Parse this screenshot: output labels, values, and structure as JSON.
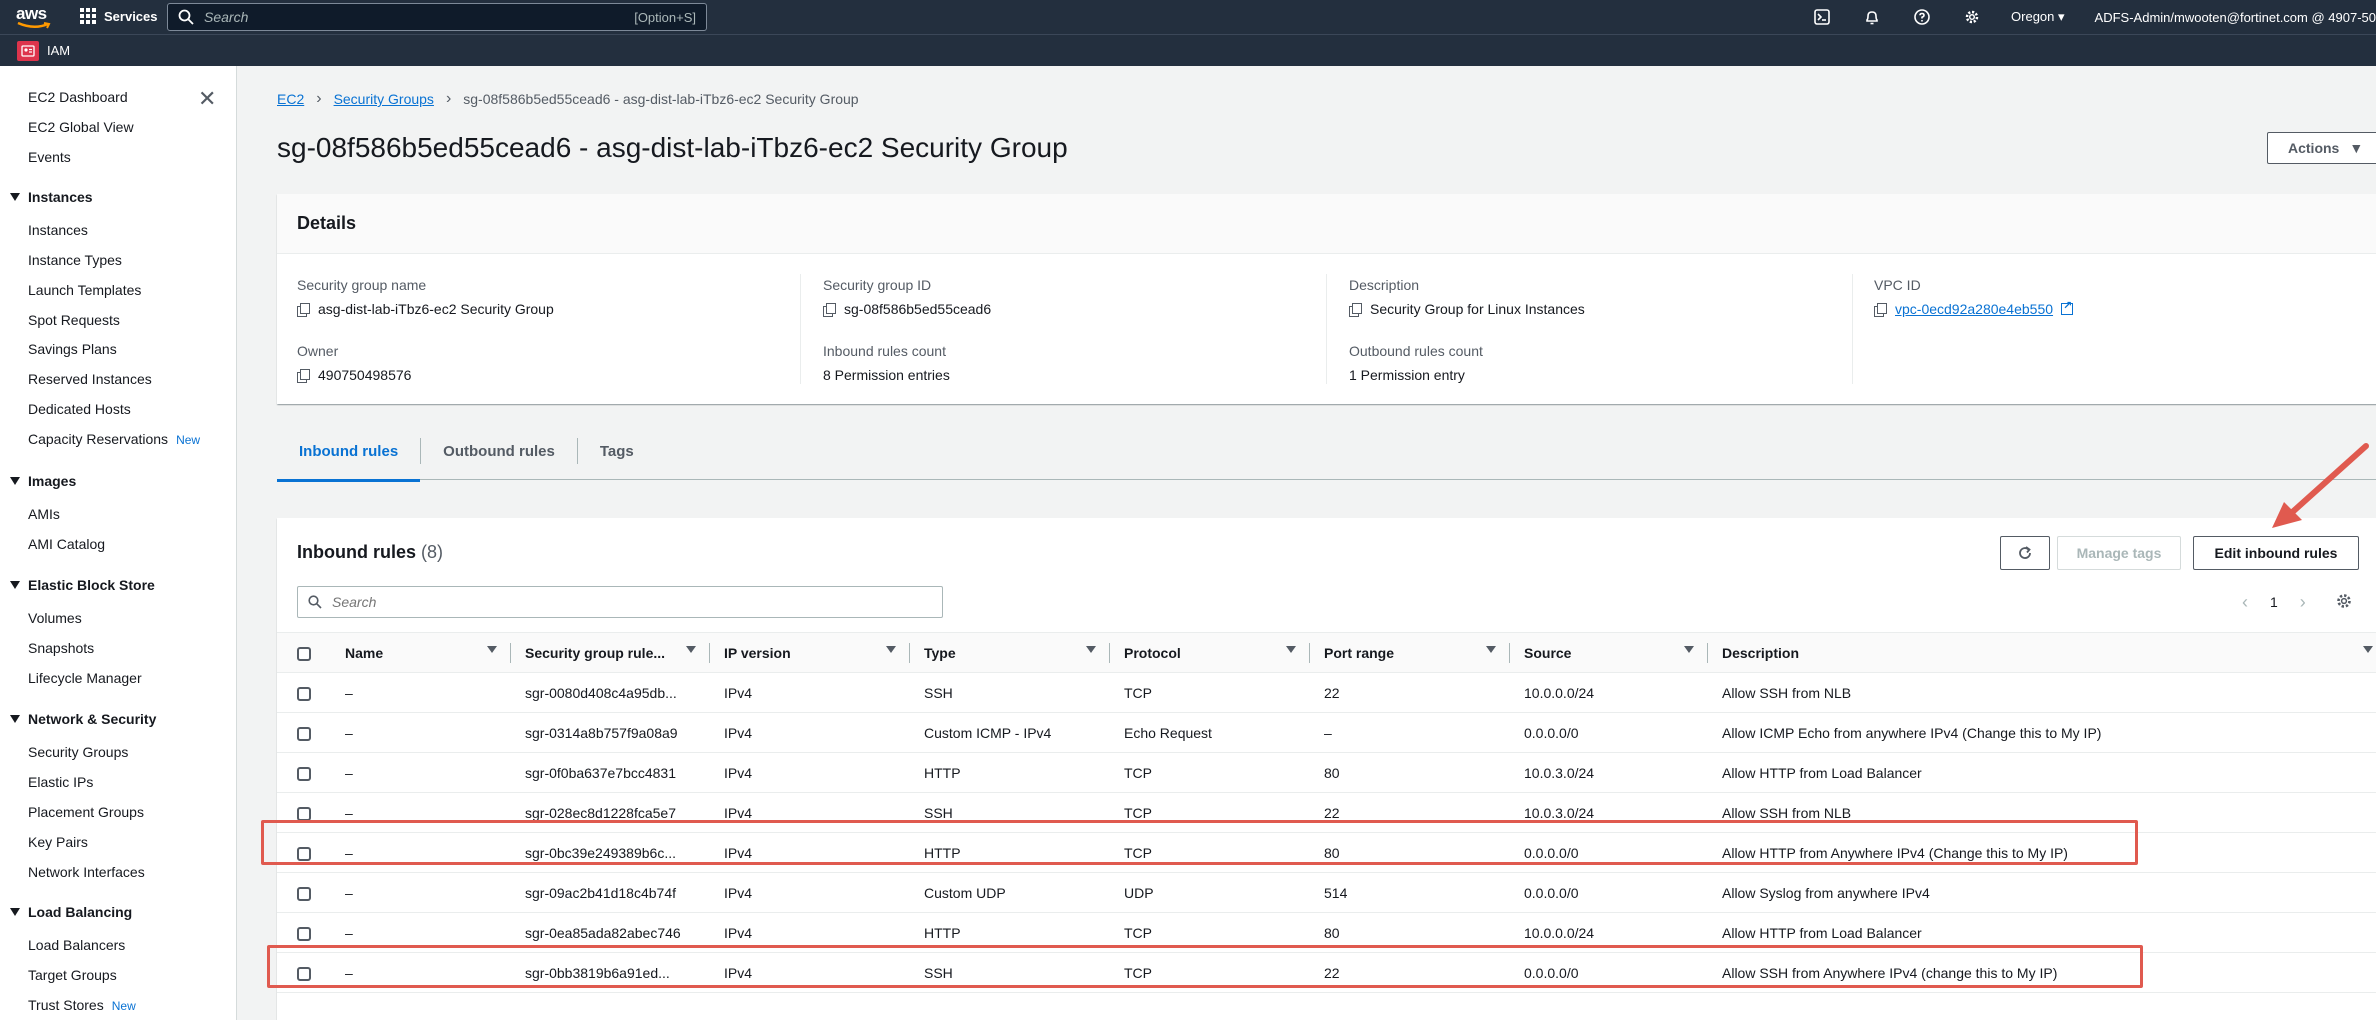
{
  "topnav": {
    "logo": "aws",
    "services_label": "Services",
    "search_placeholder": "Search",
    "search_shortcut": "[Option+S]",
    "icons": [
      "cloudshell-icon",
      "bell-icon",
      "help-icon",
      "gear-icon"
    ],
    "region": "Oregon",
    "account": "ADFS-Admin/mwooten@fortinet.com @ 4907-50"
  },
  "subnav": {
    "service_badge": "IAM",
    "service_label": "IAM"
  },
  "sidebar": {
    "top_items": [
      "EC2 Dashboard",
      "EC2 Global View",
      "Events"
    ],
    "sections": [
      {
        "title": "Instances",
        "items": [
          "Instances",
          "Instance Types",
          "Launch Templates",
          "Spot Requests",
          "Savings Plans",
          "Reserved Instances",
          "Dedicated Hosts",
          "Capacity Reservations"
        ]
      },
      {
        "title": "Images",
        "items": [
          "AMIs",
          "AMI Catalog"
        ]
      },
      {
        "title": "Elastic Block Store",
        "items": [
          "Volumes",
          "Snapshots",
          "Lifecycle Manager"
        ]
      },
      {
        "title": "Network & Security",
        "items": [
          "Security Groups",
          "Elastic IPs",
          "Placement Groups",
          "Key Pairs",
          "Network Interfaces"
        ]
      },
      {
        "title": "Load Balancing",
        "items": [
          "Load Balancers",
          "Target Groups",
          "Trust Stores"
        ]
      }
    ],
    "new_badge": "New"
  },
  "breadcrumb": {
    "ec2": "EC2",
    "security_groups": "Security Groups",
    "current": "sg-08f586b5ed55cead6 - asg-dist-lab-iTbz6-ec2 Security Group"
  },
  "page": {
    "title": "sg-08f586b5ed55cead6 - asg-dist-lab-iTbz6-ec2 Security Group",
    "actions_label": "Actions"
  },
  "details": {
    "heading": "Details",
    "sg_name_label": "Security group name",
    "sg_name": "asg-dist-lab-iTbz6-ec2 Security Group",
    "sg_id_label": "Security group ID",
    "sg_id": "sg-08f586b5ed55cead6",
    "description_label": "Description",
    "description": "Security Group for Linux Instances",
    "vpc_label": "VPC ID",
    "vpc_id": "vpc-0ecd92a280e4eb550",
    "owner_label": "Owner",
    "owner": "490750498576",
    "inbound_count_label": "Inbound rules count",
    "inbound_count": "8 Permission entries",
    "outbound_count_label": "Outbound rules count",
    "outbound_count": "1 Permission entry"
  },
  "tabs": [
    "Inbound rules",
    "Outbound rules",
    "Tags"
  ],
  "rules": {
    "title": "Inbound rules",
    "count": "(8)",
    "manage_tags": "Manage tags",
    "edit_inbound": "Edit inbound rules",
    "search_placeholder": "Search",
    "page_number": "1",
    "columns": [
      "Name",
      "Security group rule...",
      "IP version",
      "Type",
      "Protocol",
      "Port range",
      "Source",
      "Description"
    ],
    "rows": [
      [
        "–",
        "sgr-0080d408c4a95db...",
        "IPv4",
        "SSH",
        "TCP",
        "22",
        "10.0.0.0/24",
        "Allow SSH from NLB"
      ],
      [
        "–",
        "sgr-0314a8b757f9a08a9",
        "IPv4",
        "Custom ICMP - IPv4",
        "Echo Request",
        "–",
        "0.0.0.0/0",
        "Allow ICMP Echo from anywhere IPv4 (Change this to My IP)"
      ],
      [
        "–",
        "sgr-0f0ba637e7bcc4831",
        "IPv4",
        "HTTP",
        "TCP",
        "80",
        "10.0.3.0/24",
        "Allow HTTP from Load Balancer"
      ],
      [
        "–",
        "sgr-028ec8d1228fca5e7",
        "IPv4",
        "SSH",
        "TCP",
        "22",
        "10.0.3.0/24",
        "Allow SSH from NLB"
      ],
      [
        "–",
        "sgr-0bc39e249389b6c...",
        "IPv4",
        "HTTP",
        "TCP",
        "80",
        "0.0.0.0/0",
        "Allow HTTP from Anywhere IPv4 (Change this to My IP)"
      ],
      [
        "–",
        "sgr-09ac2b41d18c4b74f",
        "IPv4",
        "Custom UDP",
        "UDP",
        "514",
        "0.0.0.0/0",
        "Allow Syslog from anywhere IPv4"
      ],
      [
        "–",
        "sgr-0ea85ada82abec746",
        "IPv4",
        "HTTP",
        "TCP",
        "80",
        "10.0.0.0/24",
        "Allow HTTP from Load Balancer"
      ],
      [
        "–",
        "sgr-0bb3819b6a91ed...",
        "IPv4",
        "SSH",
        "TCP",
        "22",
        "0.0.0.0/0",
        "Allow SSH from Anywhere IPv4 (change this to My IP)"
      ]
    ]
  },
  "colors": {
    "nav_bg": "#232f3e",
    "link": "#0972d3",
    "highlight": "#e05a4f",
    "iam_red": "#dd344c"
  }
}
